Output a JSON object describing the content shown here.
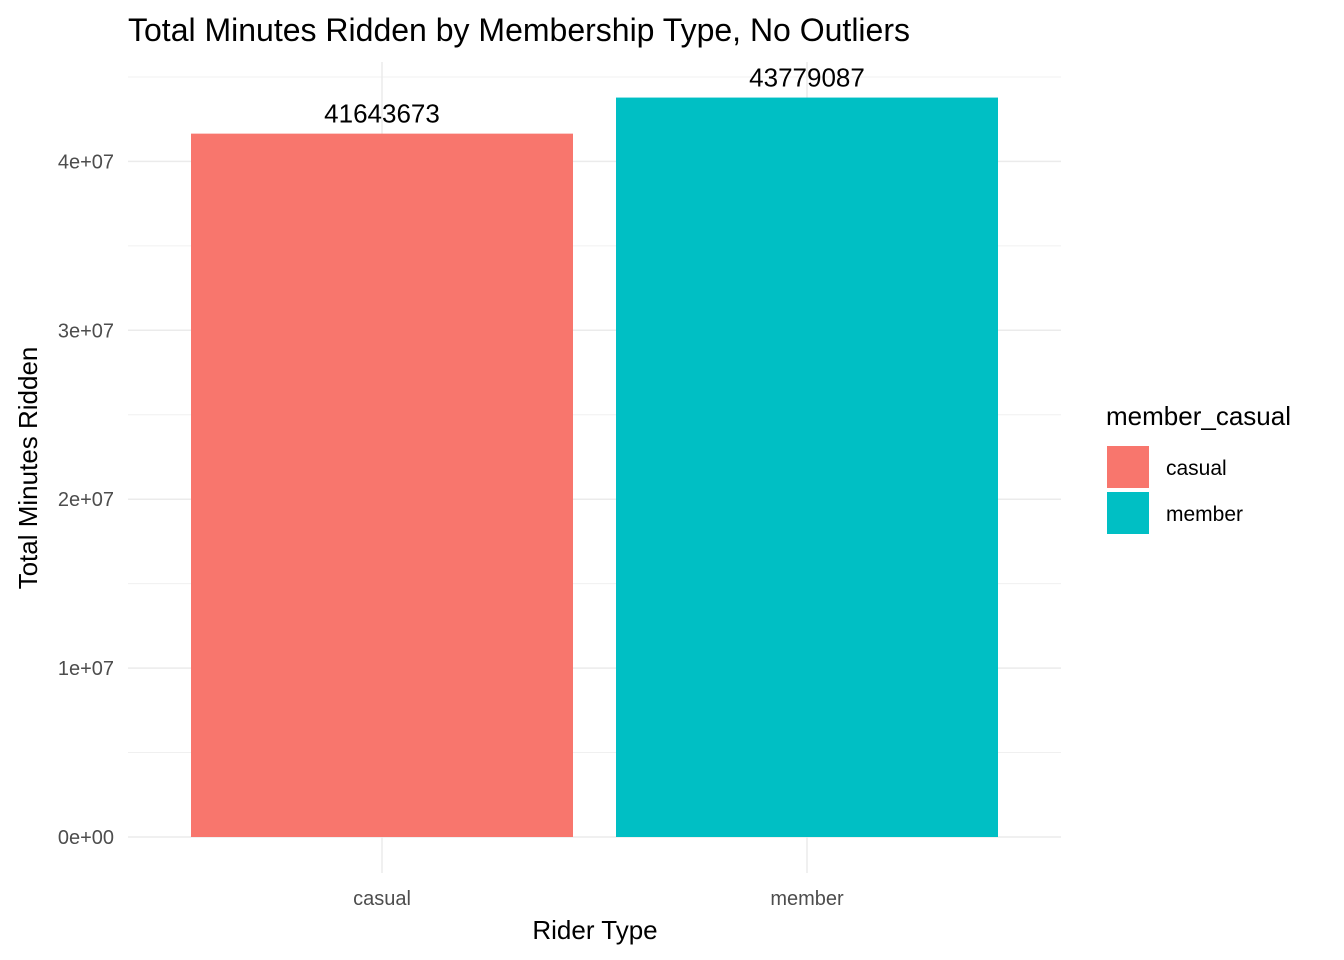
{
  "chart_data": {
    "type": "bar",
    "title": "Total Minutes Ridden by Membership Type, No Outliers",
    "xlabel": "Rider Type",
    "ylabel": "Total Minutes Ridden",
    "categories": [
      "casual",
      "member"
    ],
    "values": [
      41643673,
      43779087
    ],
    "data_labels": [
      "41643673",
      "43779087"
    ],
    "ylim": [
      0,
      45000000
    ],
    "y_ticks": [
      0,
      10000000,
      20000000,
      30000000,
      40000000
    ],
    "y_tick_labels": [
      "0e+00",
      "1e+07",
      "2e+07",
      "3e+07",
      "4e+07"
    ],
    "grid": true,
    "legend": {
      "title": "member_casual",
      "placement": "right",
      "entries": [
        {
          "label": "casual",
          "color": "#F8766D"
        },
        {
          "label": "member",
          "color": "#00BFC4"
        }
      ]
    },
    "colors": [
      "#F8766D",
      "#00BFC4"
    ]
  }
}
